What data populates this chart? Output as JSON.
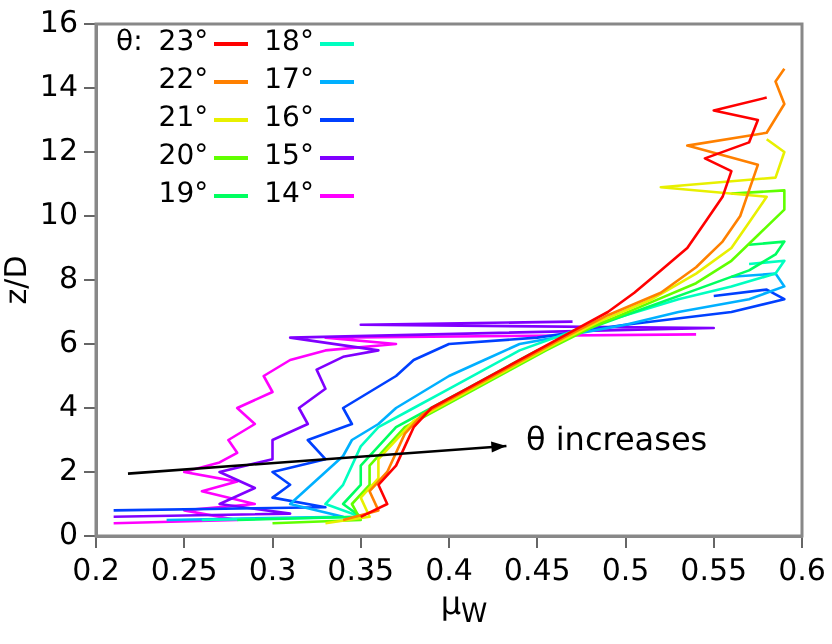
{
  "chart_data": {
    "type": "line",
    "xlabel": "μ$_{W}$",
    "ylabel": "z/D",
    "legend_title": "θ:",
    "legend": "top left",
    "grid": false,
    "marker": "none",
    "line_style": "solid",
    "xlim": [
      0.2,
      0.6
    ],
    "xticks": [
      0.2,
      0.25,
      0.3,
      0.35,
      0.4,
      0.45,
      0.5,
      0.55,
      0.6
    ],
    "ylim": [
      0,
      16
    ],
    "yticks": [
      0,
      2,
      4,
      6,
      8,
      10,
      12,
      14,
      16
    ],
    "annotations": [
      "θ increases"
    ],
    "series": [
      {
        "name": "23°",
        "color": "#ff0000",
        "x": [
          0.35,
          0.365,
          0.36,
          0.37,
          0.375,
          0.38,
          0.39,
          0.41,
          0.43,
          0.45,
          0.47,
          0.49,
          0.505,
          0.52,
          0.535,
          0.545,
          0.555,
          0.56,
          0.545,
          0.57,
          0.575,
          0.55,
          0.58
        ],
        "values": [
          0.6,
          1.0,
          1.6,
          2.2,
          2.8,
          3.4,
          4.0,
          4.6,
          5.2,
          5.8,
          6.4,
          7.0,
          7.6,
          8.3,
          9.0,
          9.8,
          10.6,
          11.4,
          11.8,
          12.3,
          13.0,
          13.3,
          13.7
        ]
      },
      {
        "name": "22°",
        "color": "#ff8000",
        "x": [
          0.34,
          0.36,
          0.355,
          0.365,
          0.37,
          0.375,
          0.385,
          0.405,
          0.425,
          0.445,
          0.465,
          0.49,
          0.52,
          0.54,
          0.555,
          0.565,
          0.57,
          0.575,
          0.535,
          0.58,
          0.59,
          0.585,
          0.59
        ],
        "values": [
          0.5,
          0.8,
          1.4,
          2.0,
          2.6,
          3.2,
          3.8,
          4.4,
          5.0,
          5.6,
          6.2,
          6.9,
          7.6,
          8.4,
          9.2,
          10.0,
          10.8,
          11.6,
          12.2,
          12.6,
          13.5,
          14.2,
          14.6
        ]
      },
      {
        "name": "21°",
        "color": "#e8f000",
        "x": [
          0.33,
          0.355,
          0.35,
          0.36,
          0.36,
          0.37,
          0.38,
          0.4,
          0.42,
          0.44,
          0.46,
          0.485,
          0.515,
          0.54,
          0.56,
          0.57,
          0.58,
          0.52,
          0.585,
          0.59,
          0.58
        ],
        "values": [
          0.4,
          0.6,
          1.2,
          1.8,
          2.4,
          3.0,
          3.6,
          4.2,
          4.8,
          5.4,
          6.0,
          6.7,
          7.4,
          8.2,
          9.0,
          9.8,
          10.6,
          10.9,
          11.2,
          12.0,
          12.4
        ]
      },
      {
        "name": "20°",
        "color": "#60ff00",
        "x": [
          0.3,
          0.35,
          0.345,
          0.355,
          0.355,
          0.365,
          0.375,
          0.395,
          0.415,
          0.435,
          0.455,
          0.48,
          0.51,
          0.54,
          0.56,
          0.575,
          0.59,
          0.59,
          0.56
        ],
        "values": [
          0.4,
          0.5,
          1.0,
          1.6,
          2.2,
          2.8,
          3.4,
          4.0,
          4.6,
          5.2,
          5.8,
          6.5,
          7.2,
          7.9,
          8.6,
          9.4,
          10.2,
          10.8,
          10.7
        ]
      },
      {
        "name": "19°",
        "color": "#00ff60",
        "x": [
          0.28,
          0.35,
          0.34,
          0.35,
          0.35,
          0.36,
          0.37,
          0.39,
          0.41,
          0.43,
          0.45,
          0.48,
          0.51,
          0.54,
          0.57,
          0.585,
          0.59,
          0.57
        ],
        "values": [
          0.5,
          0.6,
          1.0,
          1.6,
          2.2,
          2.8,
          3.4,
          4.0,
          4.6,
          5.2,
          5.8,
          6.5,
          7.1,
          7.7,
          8.3,
          8.8,
          9.2,
          9.1
        ]
      },
      {
        "name": "18°",
        "color": "#00ffc0",
        "x": [
          0.26,
          0.35,
          0.33,
          0.34,
          0.345,
          0.35,
          0.36,
          0.38,
          0.4,
          0.42,
          0.44,
          0.47,
          0.5,
          0.53,
          0.56,
          0.585,
          0.59,
          0.57
        ],
        "values": [
          0.5,
          0.6,
          1.0,
          1.6,
          2.2,
          2.8,
          3.4,
          4.0,
          4.6,
          5.2,
          5.8,
          6.4,
          6.9,
          7.4,
          7.8,
          8.2,
          8.6,
          8.5
        ]
      },
      {
        "name": "17°",
        "color": "#00b0ff",
        "x": [
          0.24,
          0.34,
          0.31,
          0.32,
          0.33,
          0.34,
          0.345,
          0.36,
          0.37,
          0.385,
          0.4,
          0.42,
          0.44,
          0.47,
          0.5,
          0.53,
          0.57,
          0.59,
          0.585,
          0.56
        ],
        "values": [
          0.5,
          0.6,
          1.0,
          1.5,
          2.0,
          2.5,
          3.0,
          3.5,
          4.0,
          4.5,
          5.0,
          5.5,
          6.0,
          6.3,
          6.6,
          7.0,
          7.4,
          7.8,
          8.2,
          8.1
        ]
      },
      {
        "name": "16°",
        "color": "#0040ff",
        "x": [
          0.21,
          0.33,
          0.3,
          0.31,
          0.3,
          0.33,
          0.32,
          0.345,
          0.34,
          0.355,
          0.37,
          0.38,
          0.4,
          0.45,
          0.5,
          0.56,
          0.59,
          0.58,
          0.55
        ],
        "values": [
          0.8,
          0.9,
          1.2,
          1.6,
          2.0,
          2.4,
          3.0,
          3.5,
          4.0,
          4.5,
          5.0,
          5.5,
          6.0,
          6.2,
          6.6,
          7.0,
          7.4,
          7.7,
          7.5
        ]
      },
      {
        "name": "15°",
        "color": "#8000ff",
        "x": [
          0.21,
          0.31,
          0.27,
          0.29,
          0.27,
          0.3,
          0.3,
          0.32,
          0.315,
          0.33,
          0.325,
          0.34,
          0.36,
          0.31,
          0.55,
          0.35,
          0.47
        ],
        "values": [
          0.6,
          0.7,
          1.0,
          1.5,
          2.0,
          2.4,
          3.0,
          3.5,
          4.0,
          4.6,
          5.2,
          5.6,
          5.8,
          6.2,
          6.5,
          6.6,
          6.7
        ]
      },
      {
        "name": "14°",
        "color": "#ff00ff",
        "x": [
          0.21,
          0.28,
          0.25,
          0.29,
          0.26,
          0.28,
          0.25,
          0.27,
          0.28,
          0.275,
          0.29,
          0.28,
          0.3,
          0.295,
          0.31,
          0.33,
          0.37,
          0.33,
          0.54
        ],
        "values": [
          0.4,
          0.5,
          0.8,
          1.0,
          1.4,
          1.7,
          2.0,
          2.3,
          2.6,
          3.0,
          3.5,
          4.0,
          4.5,
          5.0,
          5.5,
          5.8,
          6.0,
          6.2,
          6.3
        ]
      }
    ]
  }
}
